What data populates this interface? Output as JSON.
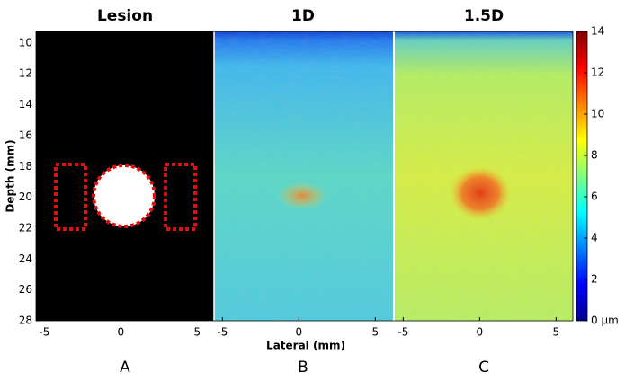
{
  "figure": {
    "panels": [
      {
        "title": "Lesion",
        "label": "A"
      },
      {
        "title": "1D",
        "label": "B"
      },
      {
        "title": "1.5D",
        "label": "C"
      }
    ],
    "xlabel": "Lateral (mm)",
    "ylabel": "Depth (mm)",
    "xlim": [
      -5.55,
      6.1
    ],
    "xticks": [
      -5,
      0,
      5
    ],
    "ylim": [
      9.25,
      28
    ],
    "yticks": [
      10,
      12,
      14,
      16,
      18,
      20,
      22,
      24,
      26,
      28
    ],
    "colorbar": {
      "lim": [
        0,
        14
      ],
      "ticks": [
        {
          "value": 0,
          "label": "0 μm"
        },
        2,
        4,
        6,
        8,
        10,
        12,
        14
      ]
    }
  }
}
